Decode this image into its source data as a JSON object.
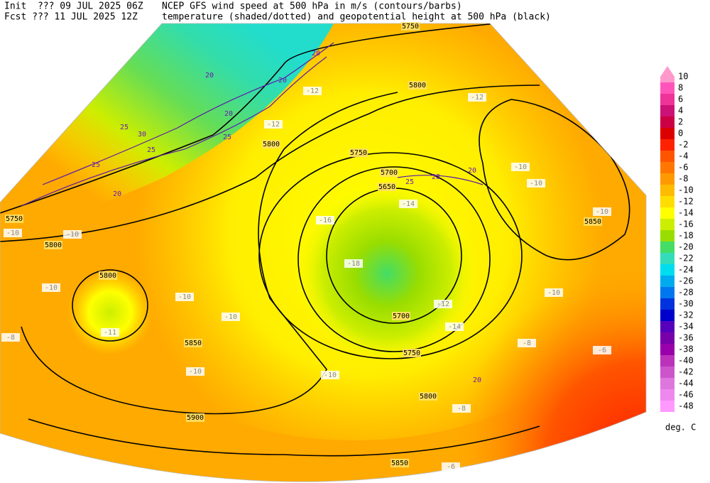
{
  "header": {
    "init": "Init  ??? 09 JUL 2025 06Z",
    "fcst": "Fcst ??? 11 JUL 2025 12Z",
    "title_line1": "NCEP GFS wind speed at 500 hPa in m/s (contours/barbs)",
    "title_line2": "temperature (shaded/dotted) and geopotential height at 500 hPa (black)"
  },
  "colorbar": {
    "unit": "deg. C",
    "levels": [
      10,
      8,
      6,
      4,
      2,
      0,
      -2,
      -4,
      -6,
      -8,
      -10,
      -12,
      -14,
      -16,
      -18,
      -20,
      -22,
      -24,
      -26,
      -28,
      -30,
      -32,
      -34,
      -36,
      -38,
      -40,
      -42,
      -44,
      -46,
      -48
    ],
    "colors": [
      "#ff99cc",
      "#ff55bb",
      "#ee3399",
      "#cc1177",
      "#cc0044",
      "#dd0000",
      "#ff2200",
      "#ff5500",
      "#ff7700",
      "#ff9900",
      "#ffbb00",
      "#ffdd00",
      "#ffff00",
      "#ccee00",
      "#99dd00",
      "#44dd66",
      "#33ddbb",
      "#00ddee",
      "#00aaee",
      "#0077ee",
      "#0033dd",
      "#0000cc",
      "#5500bb",
      "#7700aa",
      "#9900aa",
      "#bb33bb",
      "#cc55cc",
      "#dd77dd",
      "#ee88ee",
      "#ff99ff"
    ]
  },
  "map": {
    "height_labels": [
      "5750",
      "5800",
      "5800",
      "5750",
      "5700",
      "5650",
      "5850",
      "5800",
      "5750",
      "5800",
      "5850",
      "5700",
      "5750",
      "5800",
      "5900",
      "5850"
    ],
    "temperature_labels": [
      "-12",
      "-10",
      "-10",
      "-10",
      "-10",
      "-8",
      "-6",
      "-8",
      "-6",
      "-10",
      "-10",
      "-10",
      "-8",
      "-10",
      "-10",
      "-11",
      "-10",
      "-10",
      "-12",
      "-12",
      "-18",
      "-14",
      "-12",
      "-16",
      "-14"
    ],
    "wind_labels": [
      "20",
      "20",
      "20",
      "20",
      "25",
      "30",
      "25",
      "25",
      "20",
      "20",
      "28",
      "25",
      "20",
      "25"
    ]
  }
}
